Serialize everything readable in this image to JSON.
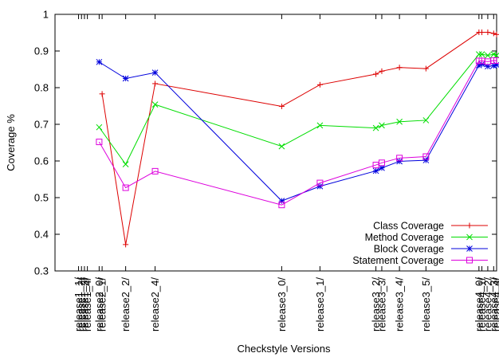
{
  "chart_data": {
    "type": "line",
    "xlabel": "Checkstyle Versions",
    "ylabel": "Coverage %",
    "ylim": [
      0.3,
      1.0
    ],
    "yticks": [
      "0.3",
      "0.4",
      "0.5",
      "0.6",
      "0.7",
      "0.8",
      "0.9",
      "1"
    ],
    "xtick_labels": [
      {
        "label": "release1_1/",
        "x": 0
      },
      {
        "label": "release1_2/",
        "x": 1
      },
      {
        "label": "release1_3/",
        "x": 2
      },
      {
        "label": "release1_4/",
        "x": 3
      },
      {
        "label": "release2_0/",
        "x": 7
      },
      {
        "label": "release2_1/",
        "x": 8
      },
      {
        "label": "release2_2/",
        "x": 16
      },
      {
        "label": "release2_4/",
        "x": 26
      },
      {
        "label": "release3_0/",
        "x": 69
      },
      {
        "label": "release3_1/",
        "x": 82
      },
      {
        "label": "release3_2/",
        "x": 101
      },
      {
        "label": "release3_3/",
        "x": 103
      },
      {
        "label": "release3_4/",
        "x": 109
      },
      {
        "label": "release3_5/",
        "x": 118
      },
      {
        "label": "release4_0/",
        "x": 136
      },
      {
        "label": "release4_1/",
        "x": 137
      },
      {
        "label": "release4_2/",
        "x": 139
      },
      {
        "label": "release4_3/",
        "x": 141
      },
      {
        "label": "release4_4/",
        "x": 142
      }
    ],
    "xlim": [
      -8,
      142
    ],
    "legend": "bottom-right",
    "series": [
      {
        "name": "Class Coverage",
        "color": "#dd0000",
        "marker": "plus",
        "x": [
          8,
          16,
          26,
          69,
          82,
          101,
          103,
          109,
          118,
          136,
          137,
          139,
          141,
          142
        ],
        "y": [
          0.783,
          0.372,
          0.811,
          0.749,
          0.808,
          0.837,
          0.845,
          0.855,
          0.852,
          0.951,
          0.951,
          0.951,
          0.948,
          0.945
        ]
      },
      {
        "name": "Method Coverage",
        "color": "#00dd00",
        "marker": "x",
        "x": [
          7,
          16,
          26,
          69,
          82,
          101,
          103,
          109,
          118,
          136,
          137,
          139,
          141,
          142
        ],
        "y": [
          0.692,
          0.591,
          0.754,
          0.64,
          0.697,
          0.69,
          0.697,
          0.707,
          0.711,
          0.891,
          0.891,
          0.888,
          0.891,
          0.888
        ]
      },
      {
        "name": "Block Coverage",
        "color": "#0000dd",
        "marker": "star",
        "x": [
          7,
          16,
          26,
          69,
          82,
          101,
          103,
          109,
          118,
          136,
          137,
          139,
          141,
          142
        ],
        "y": [
          0.87,
          0.825,
          0.841,
          0.491,
          0.531,
          0.573,
          0.581,
          0.599,
          0.602,
          0.861,
          0.864,
          0.858,
          0.86,
          0.862
        ]
      },
      {
        "name": "Statement Coverage",
        "color": "#dd00dd",
        "marker": "square",
        "x": [
          7,
          16,
          26,
          69,
          82,
          101,
          103,
          109,
          118,
          136,
          137,
          139,
          141,
          142
        ],
        "y": [
          0.652,
          0.527,
          0.572,
          0.48,
          0.54,
          0.589,
          0.595,
          0.608,
          0.612,
          0.873,
          0.873,
          0.871,
          0.874,
          0.874
        ]
      }
    ]
  }
}
